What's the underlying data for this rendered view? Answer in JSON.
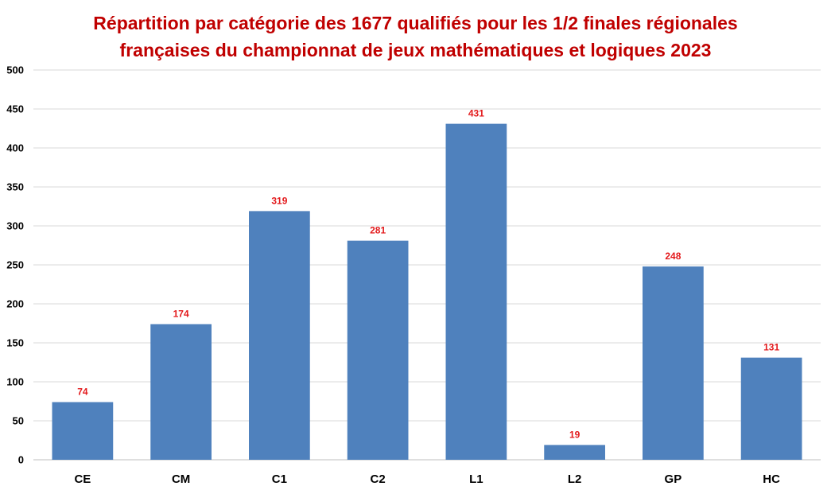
{
  "chart_data": {
    "type": "bar",
    "title_line1": "Répartition par catégorie des 1677 qualifiés pour les 1/2 finales régionales",
    "title_line2": "françaises du championnat de jeux mathématiques et logiques 2023",
    "categories": [
      "CE",
      "CM",
      "C1",
      "C2",
      "L1",
      "L2",
      "GP",
      "HC"
    ],
    "values": [
      74,
      174,
      319,
      281,
      431,
      19,
      248,
      131
    ],
    "ylim": [
      0,
      500
    ],
    "yticks": [
      0,
      50,
      100,
      150,
      200,
      250,
      300,
      350,
      400,
      450,
      500
    ],
    "grid": true,
    "legend": "none",
    "colors": {
      "bar": "#4f81bd",
      "title": "#c00000",
      "data_label": "#e31a1c",
      "grid": "#d9d9d9"
    }
  }
}
